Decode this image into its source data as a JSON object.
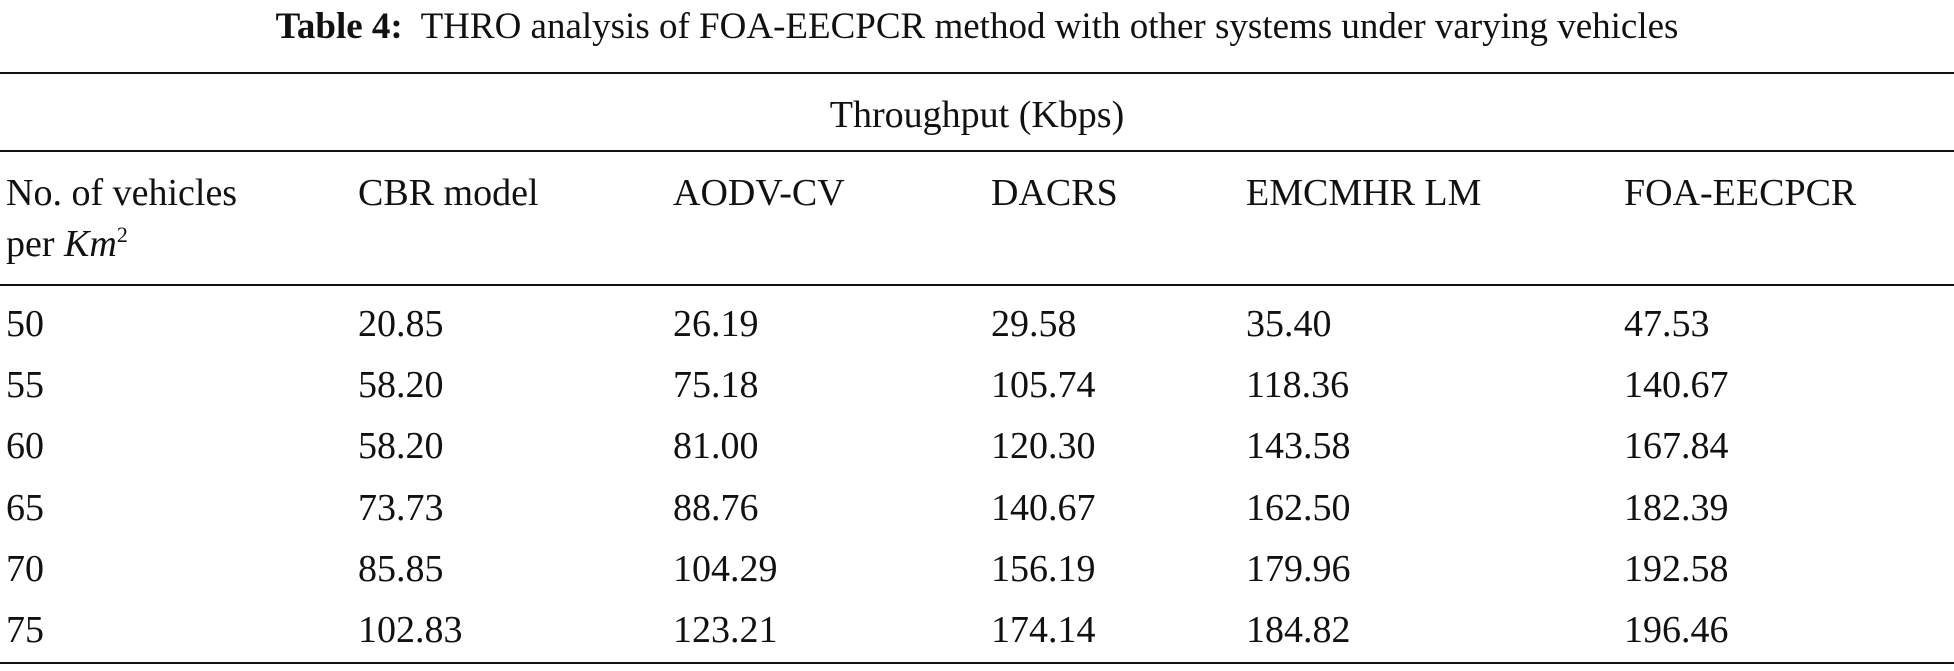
{
  "caption": {
    "label": "Table 4:",
    "text": "THRO analysis of FOA-EECPCR method with other systems under varying vehicles"
  },
  "table": {
    "group_header": "Throughput (Kbps)",
    "first_header": {
      "text": "No. of vehicles",
      "line2": "per",
      "unit": "Km",
      "superscript": "2"
    },
    "columns": [
      "CBR model",
      "AODV-CV",
      "DACRS",
      "EMCMHR LM",
      "FOA-EECPCR"
    ],
    "rows": [
      [
        "50",
        "20.85",
        "26.19",
        "29.58",
        "35.40",
        "47.53"
      ],
      [
        "55",
        "58.20",
        "75.18",
        "105.74",
        "118.36",
        "140.67"
      ],
      [
        "60",
        "58.20",
        "81.00",
        "120.30",
        "143.58",
        "167.84"
      ],
      [
        "65",
        "73.73",
        "88.76",
        "140.67",
        "162.50",
        "182.39"
      ],
      [
        "70",
        "85.85",
        "104.29",
        "156.19",
        "179.96",
        "192.58"
      ],
      [
        "75",
        "102.83",
        "123.21",
        "174.14",
        "184.82",
        "196.46"
      ]
    ]
  }
}
